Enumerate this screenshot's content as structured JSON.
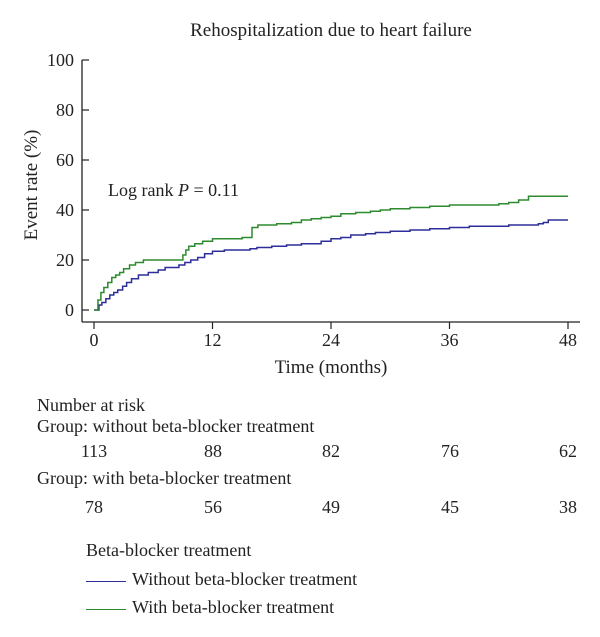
{
  "chart_data": {
    "type": "line",
    "title": "Rehospitalization due to heart failure",
    "xlabel": "Time (months)",
    "ylabel": "Event rate (%)",
    "xlim": [
      0,
      48
    ],
    "ylim": [
      0,
      100
    ],
    "x_ticks": [
      0,
      12,
      24,
      36,
      48
    ],
    "y_ticks": [
      0,
      20,
      40,
      60,
      80,
      100
    ],
    "grid": false,
    "annotation": {
      "prefix": "Log rank ",
      "p_label": "P",
      "suffix": " = 0.11"
    },
    "legend": {
      "title": "Beta-blocker treatment",
      "placement": "bottom"
    },
    "series": [
      {
        "name": "Without beta-blocker treatment",
        "color": "#2e2e9a",
        "x": [
          0,
          0.5,
          0.8,
          1.2,
          1.6,
          2.0,
          2.4,
          2.9,
          3.3,
          3.8,
          4.5,
          5.5,
          6.5,
          7.2,
          8.0,
          8.6,
          9.2,
          9.8,
          10.5,
          11.2,
          12.0,
          13.2,
          15.0,
          15.8,
          16.5,
          18.0,
          19.5,
          21.0,
          23.0,
          24.0,
          25.0,
          26.0,
          27.5,
          28.5,
          30.0,
          32.0,
          34.0,
          36.0,
          38.0,
          40.0,
          42.0,
          44.0,
          45.0,
          45.5,
          46.0,
          48.0
        ],
        "values": [
          0,
          2,
          3,
          4.5,
          6,
          7,
          8,
          9.5,
          11,
          12.5,
          14,
          15,
          16,
          17,
          17,
          18,
          19,
          20,
          21,
          22.5,
          23.5,
          24,
          24,
          24.5,
          25,
          25.5,
          26,
          26.5,
          27.5,
          28.5,
          29,
          30,
          30.5,
          31,
          31.5,
          32,
          32.5,
          33,
          33.5,
          33.5,
          34,
          34,
          34.5,
          35,
          36,
          36
        ]
      },
      {
        "name": "With beta-blocker treatment",
        "color": "#2e8a2e",
        "x": [
          0,
          0.4,
          0.7,
          1.0,
          1.4,
          1.8,
          2.2,
          2.6,
          3.0,
          3.6,
          4.2,
          5.0,
          6.5,
          7.5,
          8.6,
          9.0,
          9.3,
          9.6,
          10.2,
          11.0,
          12.0,
          13.5,
          15.0,
          16.0,
          16.6,
          17.2,
          18.5,
          20.0,
          21.0,
          22.0,
          23.0,
          24.0,
          25.0,
          26.5,
          28.0,
          29.0,
          30.0,
          32.0,
          34.0,
          36.0,
          38.0,
          40.0,
          41.0,
          42.0,
          43.0,
          44.0,
          48.0
        ],
        "values": [
          0,
          4,
          7,
          9,
          11,
          13,
          14,
          15,
          16.5,
          18,
          19,
          20,
          20,
          20,
          20,
          22,
          24,
          25.5,
          26.5,
          27.5,
          28.5,
          28.5,
          29,
          33,
          34,
          34,
          34.5,
          35,
          36,
          36.5,
          37,
          37.5,
          38.5,
          39,
          39.5,
          40,
          40.5,
          41,
          41.5,
          42,
          42,
          42,
          42.5,
          43,
          44,
          45.5,
          45.5
        ]
      }
    ]
  },
  "risk_table": {
    "heading": "Number at risk",
    "groups": [
      {
        "label": "Group: without beta-blocker treatment",
        "counts": [
          "113",
          "88",
          "82",
          "76",
          "62"
        ]
      },
      {
        "label": "Group: with beta-blocker treatment",
        "counts": [
          "78",
          "56",
          "49",
          "45",
          "38"
        ]
      }
    ]
  }
}
